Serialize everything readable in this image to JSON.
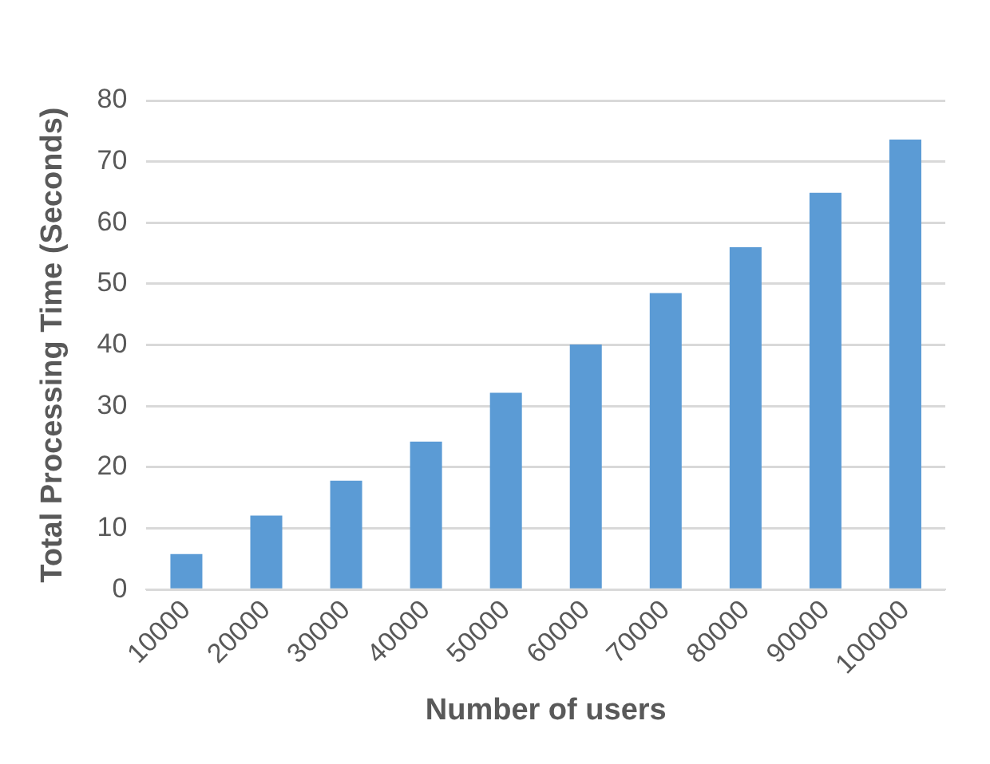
{
  "chart_data": {
    "type": "bar",
    "xlabel": "Number of users",
    "ylabel": "Total Processing Time (Seconds)",
    "categories": [
      "10000",
      "20000",
      "30000",
      "40000",
      "50000",
      "60000",
      "70000",
      "80000",
      "90000",
      "100000"
    ],
    "values": [
      5.8,
      12.1,
      17.8,
      24.2,
      32.2,
      40.1,
      48.5,
      56,
      64.9,
      73.6
    ],
    "color": "#5b9bd5",
    "ylim": [
      0,
      80
    ],
    "yticks": [
      0,
      10,
      20,
      30,
      40,
      50,
      60,
      70,
      80
    ],
    "grid": "y"
  }
}
